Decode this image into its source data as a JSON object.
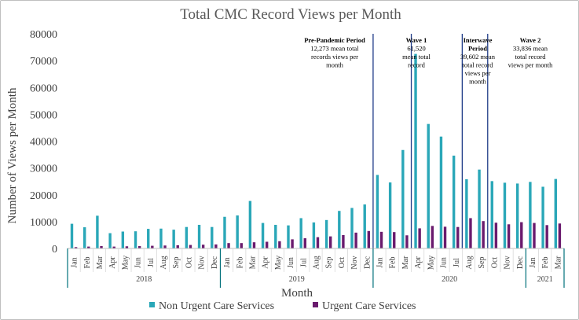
{
  "chart_data": {
    "type": "bar",
    "title": "Total CMC Record Views per Month",
    "xlabel": "Month",
    "ylabel": "Number of Views per Month",
    "ylim": [
      0,
      80000
    ],
    "yticks": [
      0,
      10000,
      20000,
      30000,
      40000,
      50000,
      60000,
      70000,
      80000
    ],
    "categories": [
      "Jan",
      "Feb",
      "Mar",
      "Apr",
      "May",
      "Jun",
      "Jul",
      "Aug",
      "Sep",
      "Oct",
      "Nov",
      "Dec",
      "Jan",
      "Feb",
      "Mar",
      "Apr",
      "May",
      "Jun",
      "Jul",
      "Aug",
      "Sep",
      "Oct",
      "Nov",
      "Dec",
      "Jan",
      "Feb",
      "Mar",
      "Apr",
      "May",
      "Jun",
      "Jul",
      "Aug",
      "Sep",
      "Oct",
      "Nov",
      "Dec",
      "Jan",
      "Feb",
      "Mar"
    ],
    "years": [
      {
        "label": "2018",
        "start": 0,
        "end": 12
      },
      {
        "label": "2019",
        "start": 12,
        "end": 24
      },
      {
        "label": "2020",
        "start": 24,
        "end": 36
      },
      {
        "label": "2021",
        "start": 36,
        "end": 39
      }
    ],
    "series": [
      {
        "name": "Non Urgent Care Services",
        "color": "#2aa7b8",
        "values": [
          9200,
          7900,
          12200,
          5700,
          6300,
          6400,
          7300,
          7400,
          7000,
          8000,
          8800,
          8000,
          11800,
          12300,
          17700,
          9500,
          8800,
          8600,
          11300,
          9700,
          10600,
          14000,
          15100,
          16400,
          27400,
          24600,
          36700,
          72500,
          46400,
          41700,
          34600,
          25800,
          29400,
          25100,
          24500,
          24200,
          24800,
          23000,
          25900
        ]
      },
      {
        "name": "Urgent Care Services",
        "color": "#6a1b6e",
        "values": [
          500,
          700,
          900,
          700,
          800,
          900,
          1000,
          1100,
          1200,
          1300,
          1400,
          1500,
          2000,
          2000,
          2300,
          2500,
          2700,
          3400,
          3800,
          4200,
          4500,
          5000,
          5900,
          6500,
          6200,
          6100,
          4900,
          7500,
          8400,
          8100,
          8000,
          11300,
          10200,
          9600,
          9000,
          9800,
          9500,
          8700,
          9300
        ]
      }
    ],
    "period_dividers_after_index": [
      23,
      26,
      30,
      32
    ],
    "annotations": [
      {
        "id": "pre",
        "title": "Pre-Pandemic Period",
        "lines": [
          "12,273 mean total",
          "records views per",
          "month"
        ]
      },
      {
        "id": "w1",
        "title": "Wave 1",
        "lines": [
          "61,520",
          "mean total",
          "record"
        ]
      },
      {
        "id": "iw",
        "title": "Interwave",
        "title2": "Period",
        "lines": [
          "39,602 mean",
          "total record",
          "views per",
          "month"
        ]
      },
      {
        "id": "w2",
        "title": "Wave 2",
        "lines": [
          "33,836 mean",
          "total record",
          "views per month"
        ]
      }
    ],
    "legend": {
      "position": "bottom"
    }
  }
}
